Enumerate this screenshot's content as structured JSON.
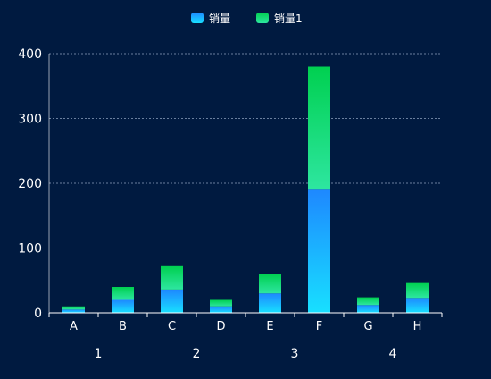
{
  "chart_data": {
    "type": "bar",
    "stacked": true,
    "categories": [
      "A",
      "B",
      "C",
      "D",
      "E",
      "F",
      "G",
      "H"
    ],
    "groups": [
      "1",
      "2",
      "3",
      "4"
    ],
    "series": [
      {
        "name": "销量",
        "values": [
          5,
          20,
          36,
          10,
          30,
          190,
          12,
          23
        ]
      },
      {
        "name": "销量1",
        "values": [
          5,
          20,
          36,
          10,
          30,
          190,
          12,
          23
        ]
      }
    ],
    "ylim": [
      0,
      400
    ],
    "yticks": [
      0,
      100,
      200,
      300,
      400
    ],
    "grid": true,
    "legend_position": "top-center",
    "colors": {
      "background": "#001a40",
      "series0_top": "#1e88ff",
      "series0_bottom": "#18e0ff",
      "series1_top": "#00d050",
      "series1_bottom": "#2ee6a0",
      "axis": "#ffffff",
      "grid": "#6a7f9e"
    }
  }
}
